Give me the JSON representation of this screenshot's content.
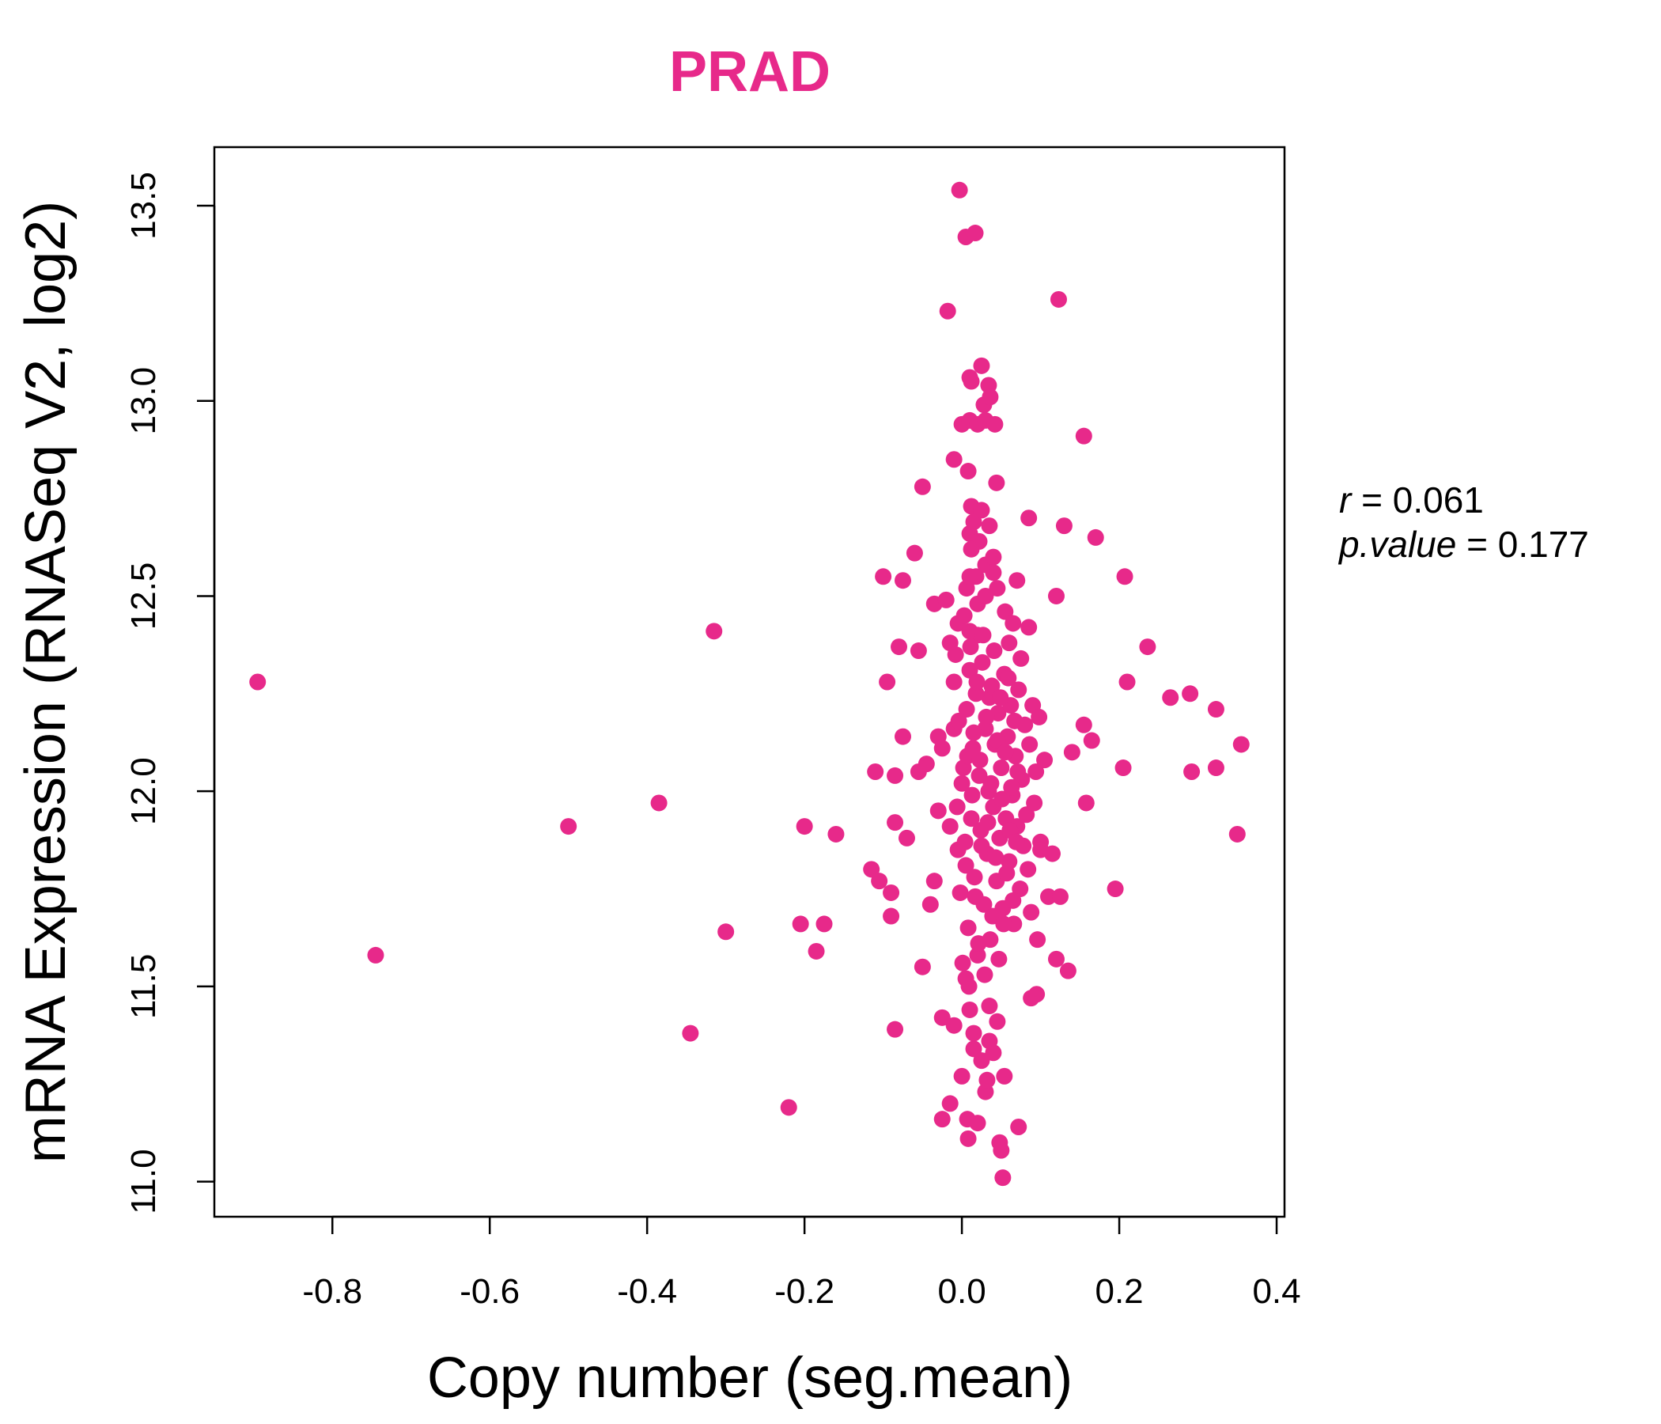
{
  "chart_data": {
    "type": "scatter",
    "title": "PRAD",
    "xlabel": "Copy number (seg.mean)",
    "ylabel": "mRNA Expression (RNASeq V2, log2)",
    "xlim": [
      -0.95,
      0.41
    ],
    "ylim": [
      10.91,
      13.65
    ],
    "x_ticks": [
      "-0.8",
      "-0.6",
      "-0.4",
      "-0.2",
      "0.0",
      "0.2",
      "0.4"
    ],
    "y_ticks": [
      "11.0",
      "11.5",
      "12.0",
      "12.5",
      "13.0",
      "13.5"
    ],
    "point_color": "#E7298A",
    "stats": {
      "r_symbol": "r",
      "r_value": "0.061",
      "p_symbol": "p.value",
      "p_value": "0.177"
    },
    "points": [
      [
        -0.895,
        12.28
      ],
      [
        -0.745,
        11.58
      ],
      [
        -0.5,
        11.91
      ],
      [
        -0.385,
        11.97
      ],
      [
        -0.345,
        11.38
      ],
      [
        -0.315,
        12.41
      ],
      [
        -0.3,
        11.64
      ],
      [
        -0.22,
        11.19
      ],
      [
        -0.2,
        11.91
      ],
      [
        -0.205,
        11.66
      ],
      [
        -0.185,
        11.59
      ],
      [
        -0.175,
        11.66
      ],
      [
        -0.16,
        11.89
      ],
      [
        -0.115,
        11.8
      ],
      [
        -0.11,
        12.05
      ],
      [
        -0.105,
        11.77
      ],
      [
        -0.1,
        12.55
      ],
      [
        -0.095,
        12.28
      ],
      [
        -0.09,
        11.68
      ],
      [
        -0.09,
        11.74
      ],
      [
        -0.085,
        12.04
      ],
      [
        -0.085,
        11.92
      ],
      [
        -0.08,
        12.37
      ],
      [
        -0.075,
        12.54
      ],
      [
        -0.075,
        12.14
      ],
      [
        -0.07,
        11.88
      ],
      [
        -0.085,
        11.39
      ],
      [
        -0.06,
        12.61
      ],
      [
        -0.055,
        12.36
      ],
      [
        -0.055,
        12.05
      ],
      [
        -0.05,
        12.78
      ],
      [
        -0.05,
        11.55
      ],
      [
        -0.045,
        12.07
      ],
      [
        -0.04,
        11.71
      ],
      [
        -0.035,
        12.48
      ],
      [
        -0.035,
        11.77
      ],
      [
        -0.03,
        12.14
      ],
      [
        -0.03,
        11.95
      ],
      [
        -0.025,
        12.11
      ],
      [
        -0.025,
        11.42
      ],
      [
        -0.025,
        11.16
      ],
      [
        -0.02,
        12.49
      ],
      [
        -0.018,
        13.23
      ],
      [
        -0.015,
        12.38
      ],
      [
        -0.015,
        11.91
      ],
      [
        -0.015,
        11.2
      ],
      [
        -0.01,
        12.85
      ],
      [
        -0.01,
        12.28
      ],
      [
        -0.01,
        12.16
      ],
      [
        -0.01,
        11.4
      ],
      [
        -0.005,
        12.43
      ],
      [
        -0.005,
        11.85
      ],
      [
        -0.003,
        13.54
      ],
      [
        0.0,
        12.94
      ],
      [
        0.0,
        11.27
      ],
      [
        0.002,
        12.06
      ],
      [
        0.005,
        13.42
      ],
      [
        0.006,
        12.52
      ],
      [
        0.007,
        11.16
      ],
      [
        0.008,
        11.11
      ],
      [
        0.008,
        12.82
      ],
      [
        0.01,
        13.06
      ],
      [
        0.01,
        12.95
      ],
      [
        0.01,
        12.66
      ],
      [
        0.01,
        12.41
      ],
      [
        0.01,
        11.44
      ],
      [
        0.012,
        13.05
      ],
      [
        0.012,
        12.73
      ],
      [
        0.015,
        12.69
      ],
      [
        0.015,
        11.34
      ],
      [
        0.017,
        13.43
      ],
      [
        0.018,
        12.55
      ],
      [
        0.02,
        12.94
      ],
      [
        0.02,
        12.4
      ],
      [
        0.02,
        11.15
      ],
      [
        0.022,
        12.64
      ],
      [
        0.025,
        13.09
      ],
      [
        0.025,
        12.72
      ],
      [
        0.028,
        12.99
      ],
      [
        0.03,
        12.95
      ],
      [
        0.03,
        12.58
      ],
      [
        0.03,
        11.23
      ],
      [
        0.032,
        11.26
      ],
      [
        0.034,
        13.04
      ],
      [
        0.035,
        12.68
      ],
      [
        0.035,
        12.24
      ],
      [
        0.036,
        13.01
      ],
      [
        0.04,
        12.6
      ],
      [
        0.04,
        11.33
      ],
      [
        0.042,
        12.94
      ],
      [
        0.044,
        12.79
      ],
      [
        0.045,
        12.52
      ],
      [
        0.048,
        11.1
      ],
      [
        0.05,
        11.08
      ],
      [
        0.052,
        11.01
      ],
      [
        0.054,
        11.27
      ],
      [
        0.055,
        12.46
      ],
      [
        0.06,
        12.38
      ],
      [
        0.065,
        12.43
      ],
      [
        0.07,
        12.54
      ],
      [
        0.072,
        11.14
      ],
      [
        0.075,
        12.34
      ],
      [
        0.085,
        12.7
      ],
      [
        0.085,
        12.42
      ],
      [
        0.088,
        11.47
      ],
      [
        0.095,
        11.48
      ],
      [
        0.1,
        11.87
      ],
      [
        0.105,
        12.08
      ],
      [
        0.11,
        11.73
      ],
      [
        0.115,
        11.84
      ],
      [
        0.12,
        12.5
      ],
      [
        0.123,
        13.26
      ],
      [
        0.12,
        11.57
      ],
      [
        0.125,
        11.73
      ],
      [
        0.13,
        12.68
      ],
      [
        0.135,
        11.54
      ],
      [
        0.14,
        12.1
      ],
      [
        0.155,
        12.91
      ],
      [
        0.155,
        12.17
      ],
      [
        0.158,
        11.97
      ],
      [
        0.165,
        12.13
      ],
      [
        0.17,
        12.65
      ],
      [
        0.195,
        11.75
      ],
      [
        0.205,
        12.06
      ],
      [
        0.207,
        12.55
      ],
      [
        0.21,
        12.28
      ],
      [
        0.236,
        12.37
      ],
      [
        0.265,
        12.24
      ],
      [
        0.29,
        12.25
      ],
      [
        0.292,
        12.05
      ],
      [
        0.323,
        12.21
      ],
      [
        0.323,
        12.06
      ],
      [
        0.35,
        11.89
      ],
      [
        0.355,
        12.12
      ],
      [
        0.0,
        12.02
      ],
      [
        0.004,
        11.87
      ],
      [
        0.006,
        12.21
      ],
      [
        0.008,
        11.65
      ],
      [
        0.01,
        12.31
      ],
      [
        0.012,
        11.93
      ],
      [
        0.014,
        12.11
      ],
      [
        0.016,
        11.78
      ],
      [
        0.018,
        12.25
      ],
      [
        0.02,
        11.58
      ],
      [
        0.022,
        12.04
      ],
      [
        0.024,
        11.9
      ],
      [
        0.026,
        12.33
      ],
      [
        0.028,
        11.71
      ],
      [
        0.03,
        12.16
      ],
      [
        0.032,
        11.84
      ],
      [
        0.034,
        12.0
      ],
      [
        0.036,
        11.62
      ],
      [
        0.038,
        12.27
      ],
      [
        0.04,
        11.96
      ],
      [
        0.042,
        12.12
      ],
      [
        0.044,
        11.77
      ],
      [
        0.046,
        12.2
      ],
      [
        0.048,
        11.88
      ],
      [
        0.05,
        12.06
      ],
      [
        0.052,
        11.7
      ],
      [
        0.054,
        12.3
      ],
      [
        0.056,
        11.93
      ],
      [
        0.058,
        12.14
      ],
      [
        0.06,
        11.82
      ],
      [
        0.062,
        12.22
      ],
      [
        0.064,
        11.99
      ],
      [
        0.066,
        11.66
      ],
      [
        0.068,
        12.09
      ],
      [
        0.07,
        11.91
      ],
      [
        0.072,
        12.26
      ],
      [
        0.074,
        11.75
      ],
      [
        0.076,
        12.03
      ],
      [
        0.078,
        11.86
      ],
      [
        0.08,
        12.17
      ],
      [
        0.082,
        11.94
      ],
      [
        0.084,
        11.8
      ],
      [
        0.086,
        12.12
      ],
      [
        0.088,
        11.69
      ],
      [
        0.09,
        12.22
      ],
      [
        0.092,
        11.97
      ],
      [
        0.094,
        12.05
      ],
      [
        0.096,
        11.62
      ],
      [
        0.098,
        12.19
      ],
      [
        0.1,
        11.85
      ],
      [
        -0.002,
        11.74
      ],
      [
        -0.004,
        12.18
      ],
      [
        -0.006,
        11.96
      ],
      [
        -0.008,
        12.35
      ],
      [
        0.001,
        11.56
      ],
      [
        0.003,
        12.45
      ],
      [
        0.005,
        11.81
      ],
      [
        0.007,
        12.09
      ],
      [
        0.009,
        11.5
      ],
      [
        0.011,
        12.37
      ],
      [
        0.013,
        11.99
      ],
      [
        0.015,
        12.15
      ],
      [
        0.017,
        11.73
      ],
      [
        0.019,
        12.28
      ],
      [
        0.021,
        11.61
      ],
      [
        0.023,
        12.08
      ],
      [
        0.025,
        11.86
      ],
      [
        0.027,
        12.4
      ],
      [
        0.029,
        11.53
      ],
      [
        0.031,
        12.19
      ],
      [
        0.033,
        11.92
      ],
      [
        0.035,
        11.45
      ],
      [
        0.037,
        12.02
      ],
      [
        0.039,
        11.68
      ],
      [
        0.041,
        12.36
      ],
      [
        0.043,
        11.83
      ],
      [
        0.045,
        12.13
      ],
      [
        0.047,
        11.57
      ],
      [
        0.049,
        12.24
      ],
      [
        0.051,
        11.98
      ],
      [
        0.053,
        11.66
      ],
      [
        0.055,
        12.1
      ],
      [
        0.057,
        11.79
      ],
      [
        0.059,
        12.29
      ],
      [
        0.061,
        11.9
      ],
      [
        0.063,
        12.01
      ],
      [
        0.065,
        11.72
      ],
      [
        0.067,
        12.18
      ],
      [
        0.069,
        11.87
      ],
      [
        0.071,
        12.05
      ],
      [
        0.015,
        11.38
      ],
      [
        0.025,
        11.31
      ],
      [
        0.035,
        11.36
      ],
      [
        0.045,
        11.41
      ],
      [
        0.005,
        11.52
      ],
      [
        0.02,
        12.48
      ],
      [
        0.03,
        12.5
      ],
      [
        0.01,
        12.55
      ],
      [
        0.04,
        12.56
      ],
      [
        0.012,
        12.62
      ]
    ]
  }
}
